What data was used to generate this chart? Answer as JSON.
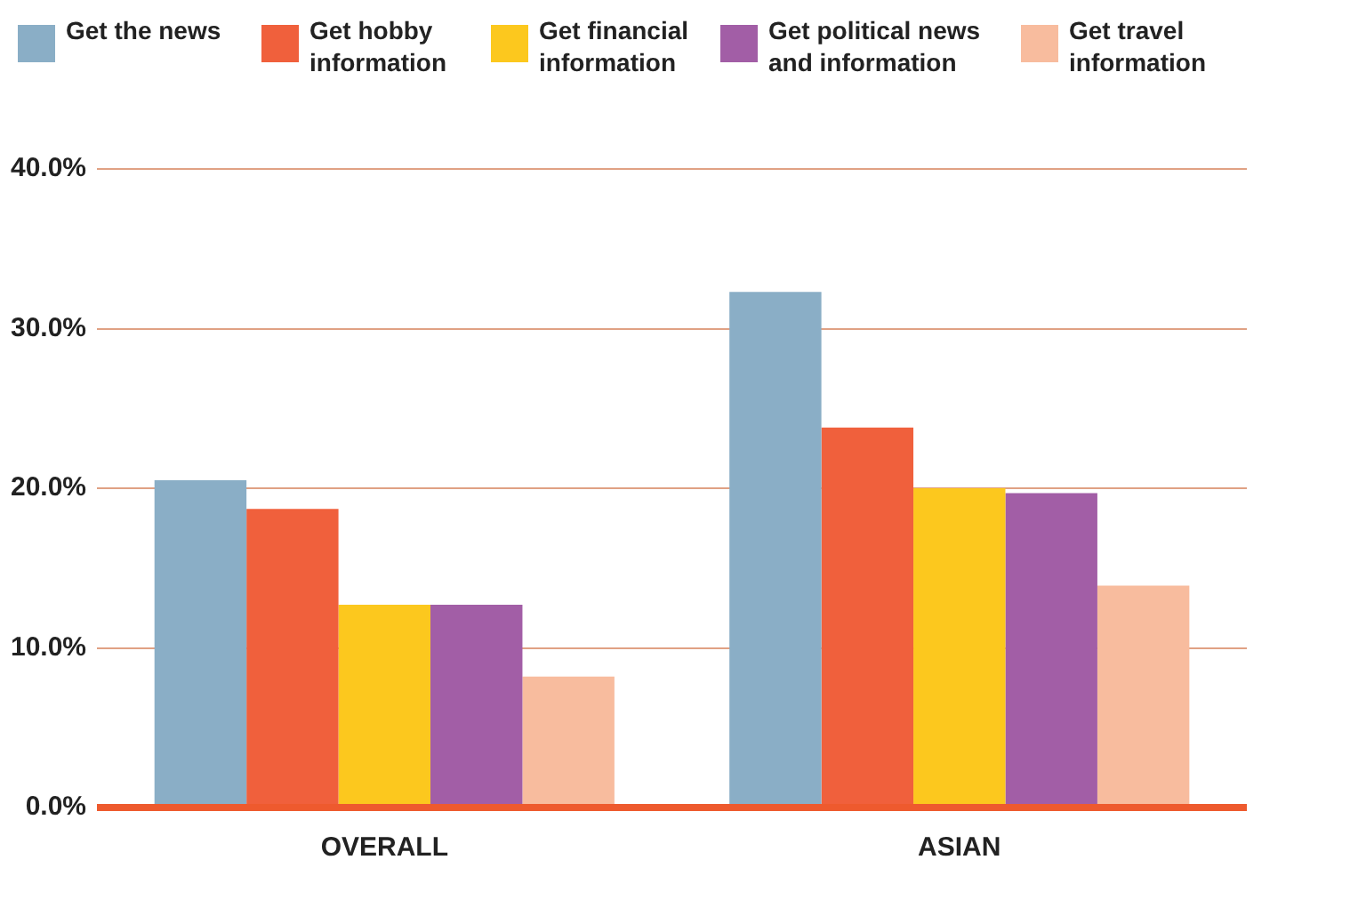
{
  "chart_data": {
    "type": "bar",
    "categories": [
      "OVERALL",
      "ASIAN"
    ],
    "series": [
      {
        "name": "Get the news",
        "color": "#8aaec6",
        "values": [
          20.5,
          32.3
        ]
      },
      {
        "name": "Get hobby information",
        "color": "#f0603c",
        "values": [
          18.7,
          23.8
        ]
      },
      {
        "name": "Get financial information",
        "color": "#fcc81e",
        "values": [
          12.7,
          20.0
        ]
      },
      {
        "name": "Get political news and information",
        "color": "#a25ea6",
        "values": [
          12.7,
          19.7
        ]
      },
      {
        "name": "Get travel information",
        "color": "#f8bc9e",
        "values": [
          8.2,
          13.9
        ]
      }
    ],
    "ylim": [
      0,
      40
    ],
    "yticks": [
      {
        "value": 0,
        "label": "0.0%"
      },
      {
        "value": 10,
        "label": "10.0%"
      },
      {
        "value": 20,
        "label": "20.0%"
      },
      {
        "value": 30,
        "label": "30.0%"
      },
      {
        "value": 40,
        "label": "40.0%"
      }
    ],
    "grid": "y",
    "legend": "top"
  }
}
